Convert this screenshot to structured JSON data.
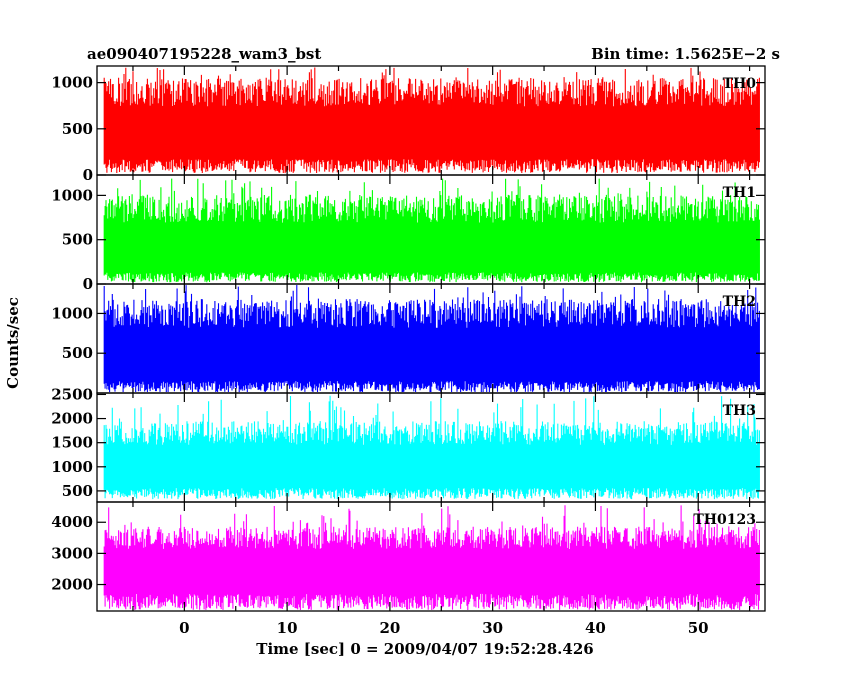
{
  "header": {
    "left_title": "ae090407195228_wam3_bst",
    "right_title": "Bin time: 1.5625E−2 s"
  },
  "chart_data": {
    "type": "line",
    "title": "ae090407195228_wam3_bst",
    "subtitle": "Bin time: 1.5625E−2 s",
    "xlabel": "Time [sec] 0 = 2009/04/07 19:52:28.426",
    "ylabel": "Counts/sec",
    "xlim": [
      -8.5,
      56.5
    ],
    "data_xrange": [
      -7.8,
      56.0
    ],
    "x_ticks": [
      0,
      10,
      20,
      30,
      40,
      50
    ],
    "grid": false,
    "panels": [
      {
        "name": "TH0",
        "color": "#ff0000",
        "ylim": [
          0,
          1180
        ],
        "y_ticks": [
          0,
          500,
          1000
        ],
        "typical_band": [
          200,
          900
        ],
        "peak_range": [
          950,
          1170
        ],
        "floor_range": [
          20,
          170
        ]
      },
      {
        "name": "TH1",
        "color": "#00ff00",
        "ylim": [
          0,
          1230
        ],
        "y_ticks": [
          0,
          500,
          1000
        ],
        "typical_band": [
          150,
          850
        ],
        "peak_range": [
          900,
          1190
        ],
        "floor_range": [
          20,
          130
        ]
      },
      {
        "name": "TH2",
        "color": "#0000ff",
        "ylim": [
          0,
          1370
        ],
        "y_ticks": [
          500,
          1000
        ],
        "typical_band": [
          200,
          1000
        ],
        "peak_range": [
          1050,
          1360
        ],
        "floor_range": [
          5,
          150
        ]
      },
      {
        "name": "TH3",
        "color": "#00ffff",
        "ylim": [
          270,
          2530
        ],
        "y_ticks": [
          500,
          1000,
          1500,
          2000,
          2500
        ],
        "typical_band": [
          600,
          1700
        ],
        "peak_range": [
          1750,
          2480
        ],
        "floor_range": [
          330,
          560
        ]
      },
      {
        "name": "TH0123",
        "color": "#ff00ff",
        "ylim": [
          1150,
          4650
        ],
        "y_ticks": [
          2000,
          3000,
          4000
        ],
        "typical_band": [
          1900,
          3500
        ],
        "peak_range": [
          3600,
          4550
        ],
        "floor_range": [
          1180,
          1700
        ]
      }
    ]
  }
}
